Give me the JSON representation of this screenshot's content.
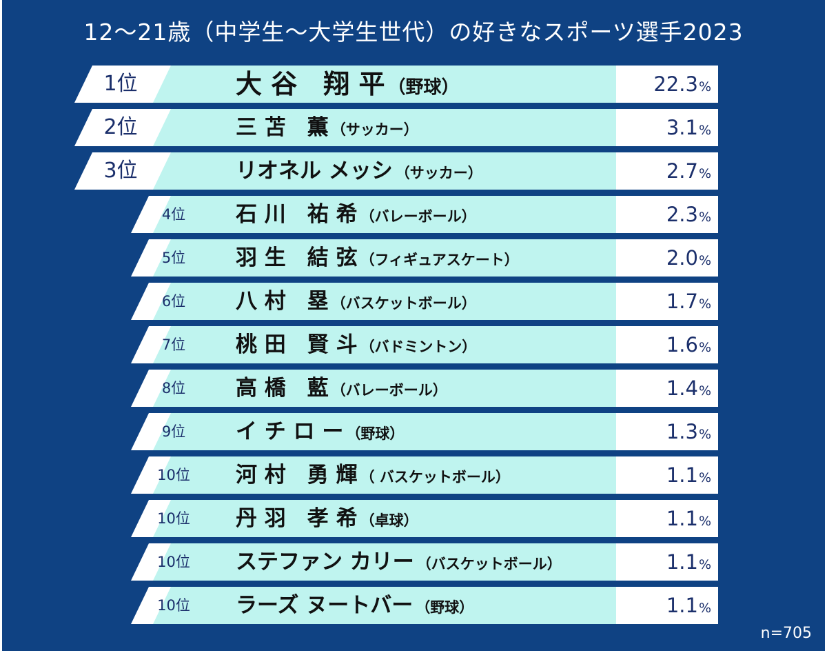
{
  "chart_data": {
    "type": "table",
    "title": "12～21歳（中学生～大学生世代）の好きなスポーツ選手2023",
    "value_unit": "%",
    "rows": [
      {
        "rank": "1位",
        "name": "大 谷　翔 平",
        "sport": "（野球）",
        "value": 22.3
      },
      {
        "rank": "2位",
        "name": "三 苫　薫",
        "sport": "（サッカー）",
        "value": 3.1
      },
      {
        "rank": "3位",
        "name": "リオネル メッシ",
        "sport": "（サッカー）",
        "value": 2.7
      },
      {
        "rank": "4位",
        "name": "石 川　祐 希",
        "sport": "（バレーボール）",
        "value": 2.3
      },
      {
        "rank": "5位",
        "name": "羽 生　結 弦",
        "sport": "（フィギュアスケート）",
        "value": 2.0
      },
      {
        "rank": "6位",
        "name": "八 村　塁",
        "sport": "（バスケットボール）",
        "value": 1.7
      },
      {
        "rank": "7位",
        "name": "桃 田　賢 斗",
        "sport": "（バドミントン）",
        "value": 1.6
      },
      {
        "rank": "8位",
        "name": "高 橋　藍",
        "sport": "（バレーボール）",
        "value": 1.4
      },
      {
        "rank": "9位",
        "name": "イ チ ロ ー",
        "sport": "（野球）",
        "value": 1.3
      },
      {
        "rank": "10位",
        "name": "河 村　勇 輝",
        "sport": "（ バスケットボール）",
        "value": 1.1
      },
      {
        "rank": "10位",
        "name": "丹 羽　孝 希",
        "sport": "（卓球）",
        "value": 1.1
      },
      {
        "rank": "10位",
        "name": "ステファン カリー",
        "sport": "（バスケットボール）",
        "value": 1.1
      },
      {
        "rank": "10位",
        "name": "ラーズ ヌートバー",
        "sport": "（野球）",
        "value": 1.1
      }
    ],
    "footnote": "n=705"
  },
  "colors": {
    "background": "#0f4283",
    "name_band": "#bff4ef",
    "rank_and_value_band": "#ffffff",
    "rank_value_text": "#1b2f6b"
  }
}
